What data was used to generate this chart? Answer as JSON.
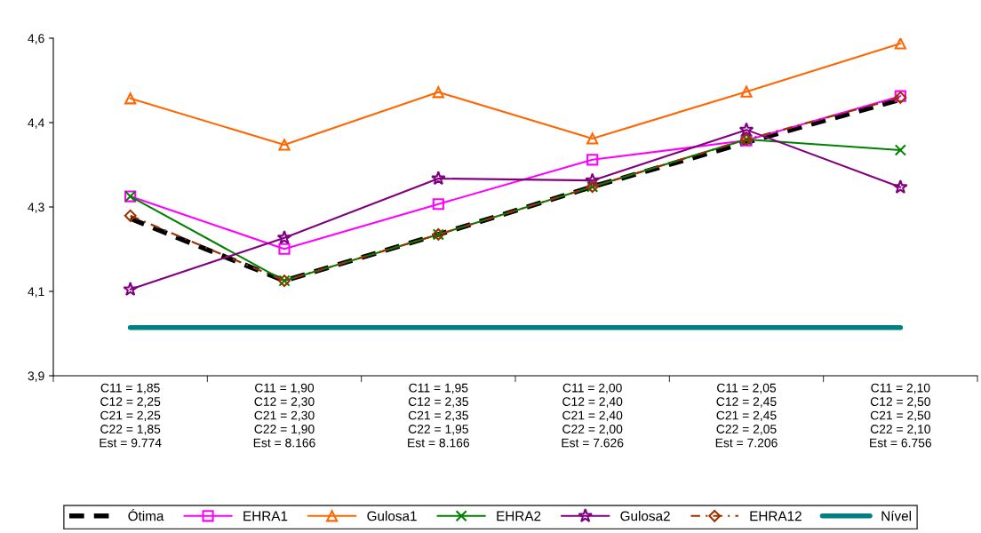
{
  "chart_data": {
    "type": "line",
    "categories": [
      "C11 = 1,85\nC12 = 2,25\nC21 = 2,25\nC22 = 1,85\nEst = 9.774",
      "C11 = 1,90\nC12 = 2,30\nC21 = 2,30\nC22 = 1,90\nEst = 8.166",
      "C11 = 1,95\nC12 = 2,35\nC21 = 2,35\nC22 = 1,95\nEst = 8.166",
      "C11 = 2,00\nC12 = 2,40\nC21 = 2,40\nC22 = 2,00\nEst = 7.626",
      "C11 = 2,05\nC12 = 2,45\nC21 = 2,45\nC22 = 2,05\nEst = 7.206",
      "C11 = 2,10\nC12 = 2,50\nC21 = 2,50\nC22 = 2,10\nEst = 6.756"
    ],
    "series": [
      {
        "name": "Ótima",
        "color": "#000000",
        "marker": "none",
        "line_style": "dashed",
        "values": [
          4.226,
          4.097,
          4.193,
          4.292,
          4.384,
          4.473
        ]
      },
      {
        "name": "EHRA1",
        "color": "#ff00ff",
        "marker": "square",
        "line_style": "solid",
        "values": [
          4.272,
          4.163,
          4.256,
          4.348,
          4.388,
          4.48
        ]
      },
      {
        "name": "Gulosa1",
        "color": "#ff6600",
        "marker": "triangle",
        "line_style": "solid",
        "values": [
          4.475,
          4.379,
          4.488,
          4.392,
          4.489,
          4.589
        ]
      },
      {
        "name": "EHRA2",
        "color": "#008000",
        "marker": "cross",
        "line_style": "solid",
        "values": [
          4.272,
          4.097,
          4.193,
          4.292,
          4.39,
          4.368
        ]
      },
      {
        "name": "Gulosa2",
        "color": "#800080",
        "marker": "star",
        "line_style": "solid",
        "values": [
          4.079,
          4.186,
          4.309,
          4.305,
          4.41,
          4.291
        ]
      },
      {
        "name": "EHRA12",
        "color": "#993300",
        "marker": "diamond",
        "line_style": "dashdot",
        "values": [
          4.232,
          4.097,
          4.193,
          4.292,
          4.39,
          4.477
        ]
      },
      {
        "name": "Nível",
        "color": "#008080",
        "marker": "none",
        "line_style": "solid",
        "values": [
          4.0,
          4.0,
          4.0,
          4.0,
          4.0,
          4.0
        ]
      }
    ],
    "ylim": [
      3.9,
      4.6
    ],
    "yticks": [
      {
        "value": 3.9,
        "label": "3,9"
      },
      {
        "value": 4.075,
        "label": "4,1"
      },
      {
        "value": 4.25,
        "label": "4,3"
      },
      {
        "value": 4.425,
        "label": "4,4"
      },
      {
        "value": 4.6,
        "label": "4,6"
      }
    ],
    "grid": false,
    "legend": "bottom"
  }
}
